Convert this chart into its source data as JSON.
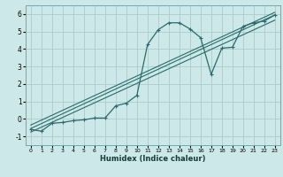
{
  "xlabel": "Humidex (Indice chaleur)",
  "bg_color": "#cce8e8",
  "grid_color": "#aacccc",
  "line_color": "#2a6b6b",
  "xlim": [
    -0.5,
    23.5
  ],
  "ylim": [
    -1.5,
    6.5
  ],
  "xticks": [
    0,
    1,
    2,
    3,
    4,
    5,
    6,
    7,
    8,
    9,
    10,
    11,
    12,
    13,
    14,
    15,
    16,
    17,
    18,
    19,
    20,
    21,
    22,
    23
  ],
  "yticks": [
    -1,
    0,
    1,
    2,
    3,
    4,
    5,
    6
  ],
  "curve_x": [
    0,
    1,
    2,
    3,
    4,
    5,
    6,
    7,
    8,
    9,
    10,
    11,
    12,
    13,
    14,
    15,
    16,
    17,
    18,
    19,
    20,
    21,
    22,
    23
  ],
  "curve_y": [
    -0.6,
    -0.7,
    -0.25,
    -0.2,
    -0.1,
    -0.05,
    0.05,
    0.05,
    0.75,
    0.9,
    1.35,
    4.25,
    5.1,
    5.5,
    5.5,
    5.15,
    4.65,
    2.55,
    4.05,
    4.1,
    5.3,
    5.5,
    5.6,
    5.95
  ],
  "line1_x": [
    0,
    23
  ],
  "line1_y": [
    -0.55,
    5.95
  ],
  "line2_x": [
    0,
    23
  ],
  "line2_y": [
    -0.75,
    5.65
  ],
  "line3_x": [
    0,
    23
  ],
  "line3_y": [
    -0.35,
    6.1
  ]
}
